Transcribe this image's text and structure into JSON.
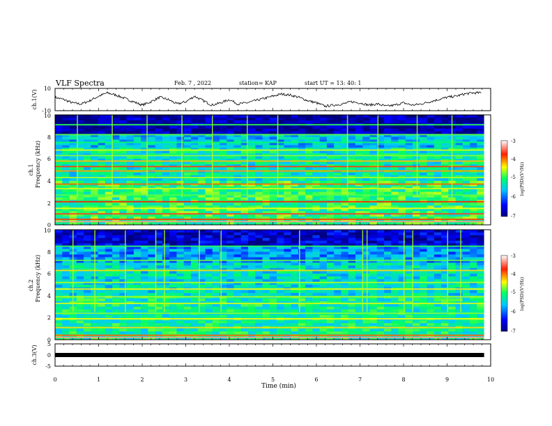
{
  "header": {
    "title": "VLF Spectra",
    "date": "Feb. 7 , 2022",
    "station": "station= KAP",
    "start": "start  UT =   13: 40: 1"
  },
  "chart_data": [
    {
      "type": "line",
      "name": "ch1-waveform",
      "ylabel": "ch.1(V)",
      "ylim": [
        -10,
        10
      ],
      "yticks": [
        "10",
        "-10"
      ],
      "xlim": [
        0,
        10
      ],
      "x_min": [
        0.0,
        0.2,
        0.4,
        0.6,
        0.8,
        1.0,
        1.2,
        1.4,
        1.6,
        1.8,
        2.0,
        2.2,
        2.4,
        2.6,
        2.8,
        3.0,
        3.2,
        3.4,
        3.6,
        3.8,
        4.0,
        4.2,
        4.4,
        4.6,
        4.8,
        5.0,
        5.2,
        5.4,
        5.6,
        5.8,
        6.0,
        6.2,
        6.4,
        6.6,
        6.8,
        7.0,
        7.2,
        7.4,
        7.6,
        7.8,
        8.0,
        8.2,
        8.4,
        8.6,
        8.8,
        9.0,
        9.2,
        9.4,
        9.6,
        9.8
      ],
      "y_V": [
        2,
        0,
        -3,
        -4,
        -1,
        3,
        6,
        4,
        1,
        -2,
        -5,
        -2,
        2,
        0,
        -4,
        -2,
        3,
        -1,
        -5,
        -3,
        0,
        -4,
        -3,
        -1,
        1,
        3,
        5,
        4,
        2,
        -1,
        -3,
        -6,
        -5,
        -4,
        -2,
        -3,
        -5,
        -4,
        -6,
        -5,
        -3,
        -5,
        -4,
        -2,
        0,
        2,
        3,
        5,
        6,
        6
      ]
    },
    {
      "type": "heatmap",
      "name": "ch1-spectrogram",
      "ylabel": "ch.1",
      "ylabel2": "Frequency (kHz)",
      "ylim": [
        0,
        10
      ],
      "yticks": [
        "0",
        "2",
        "4",
        "6",
        "8",
        "10"
      ],
      "xlim": [
        0,
        9.85
      ],
      "colorbar_label": "log(PSD)(V²/Hz)",
      "colorbar_ticks": [
        "-3",
        "-4",
        "-5",
        "-6",
        "-7"
      ],
      "bands_kHz": [
        0.3,
        0.5,
        1.0,
        1.5,
        2.1,
        2.7,
        3.3,
        3.7,
        4.3,
        4.9,
        5.3,
        5.8,
        6.3,
        6.8,
        7.5,
        8.2,
        9.1
      ],
      "band_level": [
        -3.3,
        -3.8,
        -3.6,
        -4.4,
        -3.7,
        -4.8,
        -4.5,
        -3.9,
        -4.6,
        -4.1,
        -3.8,
        -4.2,
        -4.7,
        -4.5,
        -5.0,
        -4.8,
        -4.9
      ],
      "background_level": [
        -5.0,
        -5.3,
        -5.6,
        -6.8
      ],
      "background_band_kHz": [
        0,
        4,
        7,
        8.2,
        10
      ]
    },
    {
      "type": "heatmap",
      "name": "ch2-spectrogram",
      "ylabel": "ch.2",
      "ylabel2": "Frequency (kHz)",
      "ylim": [
        0,
        10
      ],
      "yticks": [
        "0",
        "2",
        "4",
        "6",
        "8",
        "10"
      ],
      "xlim": [
        0,
        9.85
      ],
      "colorbar_label": "log(PSD)(V²/Hz)",
      "colorbar_ticks": [
        "-3",
        "-4",
        "-5",
        "-6",
        "-7"
      ],
      "bands_kHz": [
        0.2,
        0.4,
        1.1,
        1.9,
        2.4,
        3.3,
        3.9,
        4.6,
        5.2,
        6.3,
        7.2,
        8.5
      ],
      "band_level": [
        -3.3,
        -3.9,
        -4.3,
        -4.4,
        -4.7,
        -4.5,
        -4.6,
        -4.4,
        -4.6,
        -4.3,
        -4.8,
        -4.9
      ],
      "background_level": [
        -5.2,
        -5.4,
        -5.8,
        -6.6
      ],
      "background_band_kHz": [
        0,
        4,
        7,
        8.6,
        10
      ],
      "burst_times_min": [
        0.4,
        0.9,
        1.6,
        2.3,
        2.5,
        3.3,
        3.8,
        5.6,
        7.05,
        7.15,
        8.0,
        8.2,
        9.0,
        9.3
      ]
    },
    {
      "type": "line",
      "name": "ch3-waveform",
      "ylabel": "ch.3(V)",
      "ylim": [
        -5,
        5
      ],
      "yticks": [
        "5",
        "0",
        "-5"
      ],
      "xlim": [
        0,
        10
      ],
      "x_min": [
        0,
        9.85
      ],
      "y_V": [
        0,
        0
      ],
      "xlabel": "Time (min)",
      "xticks": [
        "0",
        "1",
        "2",
        "3",
        "4",
        "5",
        "6",
        "7",
        "8",
        "9",
        "10"
      ]
    }
  ]
}
